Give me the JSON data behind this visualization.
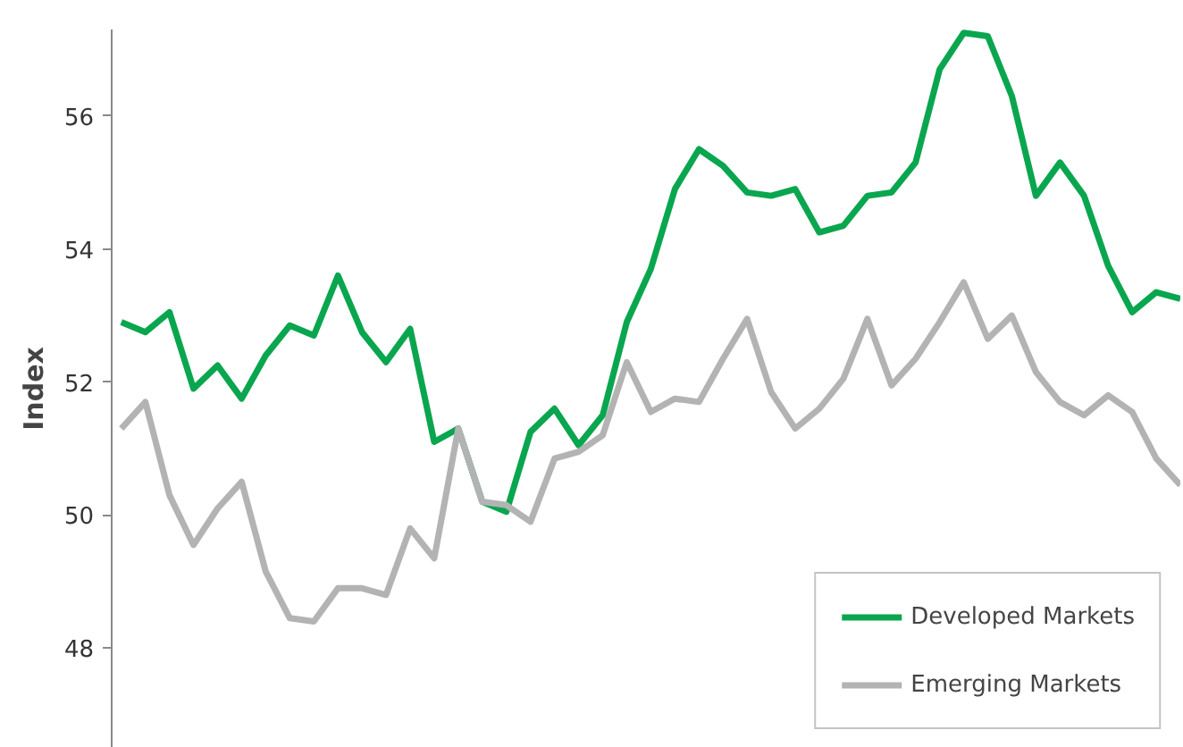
{
  "chart_data": {
    "type": "line",
    "ylabel": "Index",
    "categories": [
      null,
      null,
      null,
      null,
      null,
      null,
      null,
      null,
      null,
      null,
      null,
      null,
      null,
      null,
      null,
      null,
      null,
      null,
      null,
      null,
      null,
      null,
      null,
      null,
      null,
      null,
      null,
      null,
      null,
      null,
      null,
      null,
      null,
      null,
      null,
      null,
      null,
      null,
      null,
      null,
      null,
      null,
      null,
      null,
      null
    ],
    "series": [
      {
        "name": "Developed Markets",
        "color": "#0aa64f",
        "values": [
          52.9,
          52.75,
          53.05,
          51.9,
          52.25,
          51.75,
          52.4,
          52.85,
          52.7,
          53.6,
          52.75,
          52.3,
          52.8,
          51.1,
          51.3,
          50.2,
          50.05,
          51.25,
          51.6,
          51.05,
          51.5,
          52.9,
          53.7,
          54.9,
          55.5,
          55.25,
          54.85,
          54.8,
          54.9,
          54.25,
          54.35,
          54.8,
          54.85,
          55.3,
          56.7,
          57.25,
          57.2,
          56.3,
          54.8,
          55.3,
          54.8,
          53.75,
          53.05,
          53.35,
          53.25
        ]
      },
      {
        "name": "Emerging Markets",
        "color": "#b3b3b3",
        "values": [
          51.3,
          51.7,
          50.3,
          49.55,
          50.1,
          50.5,
          49.15,
          48.45,
          48.4,
          48.9,
          48.9,
          48.8,
          49.8,
          49.35,
          51.3,
          50.2,
          50.15,
          49.9,
          50.85,
          50.95,
          51.2,
          52.3,
          51.55,
          51.75,
          51.7,
          52.35,
          52.95,
          51.85,
          51.3,
          51.6,
          52.05,
          52.95,
          51.95,
          52.35,
          52.9,
          53.5,
          52.65,
          53.0,
          52.15,
          51.7,
          51.5,
          51.8,
          51.55,
          50.85,
          50.45
        ]
      }
    ],
    "ylim": [
      46.5,
      57.3
    ],
    "yticks": [
      48,
      50,
      52,
      54,
      56
    ],
    "grid": false,
    "legend": "bottom right",
    "tick_labels": "y",
    "marker": "none",
    "line_style": "solid"
  }
}
